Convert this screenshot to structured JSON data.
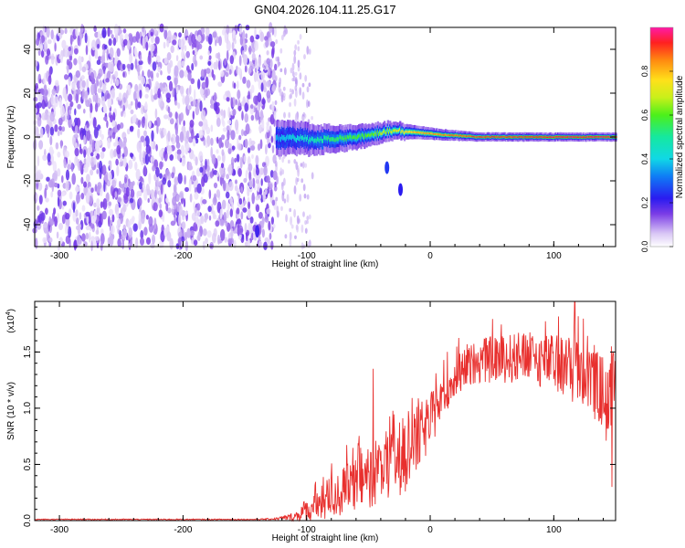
{
  "page": {
    "title": "GN04.2026.104.11.25.G17"
  },
  "chart_data": [
    {
      "id": "spectrogram",
      "type": "heatmap",
      "title": "GN04.2026.104.11.25.G17",
      "xlabel": "Height of straight line (km)",
      "ylabel": "Frequency (Hz)",
      "xlim": [
        -320,
        150
      ],
      "ylim": [
        -50,
        50
      ],
      "xticks": [
        -300,
        -200,
        -100,
        0,
        100
      ],
      "xtick_labels": [
        "-300",
        "-200",
        "-100",
        "0",
        "100"
      ],
      "yticks": [
        -40,
        -20,
        0,
        20,
        40
      ],
      "ytick_labels": [
        "-40",
        "-20",
        "0",
        "20",
        "40"
      ],
      "noise_region": {
        "x_from": -320,
        "x_to": -125,
        "y_from": -50,
        "y_to": 50,
        "amplitude_max": 0.15
      },
      "ridge": [
        {
          "x": -125,
          "y": 0,
          "amp": 0.35,
          "width": 8
        },
        {
          "x": -100,
          "y": -1,
          "amp": 0.45,
          "width": 7
        },
        {
          "x": -75,
          "y": -1,
          "amp": 0.55,
          "width": 6
        },
        {
          "x": -50,
          "y": 1,
          "amp": 0.6,
          "width": 5
        },
        {
          "x": -30,
          "y": 3,
          "amp": 0.7,
          "width": 4
        },
        {
          "x": -10,
          "y": 2,
          "amp": 0.8,
          "width": 3
        },
        {
          "x": 10,
          "y": 1,
          "amp": 0.85,
          "width": 2.5
        },
        {
          "x": 40,
          "y": 0,
          "amp": 0.9,
          "width": 2
        },
        {
          "x": 80,
          "y": 0,
          "amp": 0.93,
          "width": 2
        },
        {
          "x": 120,
          "y": 0,
          "amp": 0.95,
          "width": 2
        },
        {
          "x": 150,
          "y": 0,
          "amp": 0.95,
          "width": 2
        }
      ],
      "spurious_blobs": [
        {
          "x": -35,
          "y": -14,
          "amp": 0.15
        },
        {
          "x": -24,
          "y": -24,
          "amp": 0.12
        },
        {
          "x": -140,
          "y": -43,
          "amp": 0.1
        }
      ]
    },
    {
      "id": "colorbar",
      "type": "colorbar",
      "label": "Normalized spectral amplitude",
      "range": [
        0,
        1
      ],
      "ticks": [
        0.0,
        0.2,
        0.4,
        0.6,
        0.8
      ],
      "tick_labels": [
        "0.0",
        "0.2",
        "0.4",
        "0.6",
        "0.8"
      ]
    },
    {
      "id": "snr",
      "type": "line",
      "xlabel": "Height of straight line (km)",
      "ylabel": "SNR (10 * v/v)",
      "scale_label": "(x10",
      "scale_exponent": "4",
      "scale_close": ")",
      "color": "#e8302e",
      "xlim": [
        -320,
        150
      ],
      "ylim": [
        0,
        1.95
      ],
      "xticks": [
        -300,
        -200,
        -100,
        0,
        100
      ],
      "xtick_labels": [
        "-300",
        "-200",
        "-100",
        "0",
        "100"
      ],
      "yticks": [
        0.0,
        0.5,
        1.0,
        1.5
      ],
      "ytick_labels": [
        "0.0",
        "0.5",
        "1.0",
        "1.5"
      ],
      "envelope": {
        "x": [
          -320,
          -140,
          -125,
          -110,
          -100,
          -90,
          -80,
          -70,
          -60,
          -50,
          -40,
          -30,
          -20,
          -10,
          0,
          10,
          20,
          30,
          40,
          60,
          80,
          100,
          110,
          120,
          130,
          140,
          145,
          150
        ],
        "mean": [
          0.01,
          0.01,
          0.015,
          0.03,
          0.08,
          0.12,
          0.18,
          0.24,
          0.3,
          0.36,
          0.42,
          0.5,
          0.55,
          0.7,
          0.85,
          1.1,
          1.25,
          1.35,
          1.4,
          1.42,
          1.42,
          1.38,
          1.33,
          1.3,
          1.22,
          1.1,
          0.95,
          1.2
        ],
        "noise": [
          0.005,
          0.005,
          0.01,
          0.04,
          0.12,
          0.15,
          0.2,
          0.22,
          0.25,
          0.28,
          0.3,
          0.32,
          0.35,
          0.3,
          0.25,
          0.2,
          0.18,
          0.18,
          0.2,
          0.22,
          0.24,
          0.25,
          0.3,
          0.32,
          0.3,
          0.35,
          0.4,
          0.35
        ]
      },
      "annotated_peaks": [
        {
          "x": 117,
          "y": 1.95
        },
        {
          "x": -46,
          "y": 1.35
        },
        {
          "x": 147,
          "y": 0.3
        }
      ]
    }
  ]
}
